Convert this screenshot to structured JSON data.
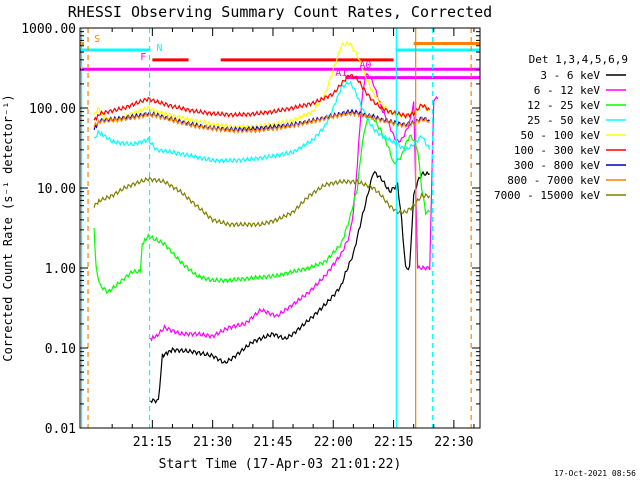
{
  "chart_data": {
    "type": "line",
    "title": "RHESSI Observing Summary Count Rates, Corrected",
    "xlabel": "Start Time (17-Apr-03 21:01:22)",
    "ylabel": "Corrected Count Rate (s⁻¹ detector⁻¹)",
    "ylog": true,
    "ylim": [
      0.01,
      1000
    ],
    "xlim_minutes": [
      -3.0,
      96.5
    ],
    "x_unit": "minutes after 21:00 UT",
    "x_ticks": [
      {
        "label": "21:15",
        "x": 15
      },
      {
        "label": "21:30",
        "x": 30
      },
      {
        "label": "21:45",
        "x": 45
      },
      {
        "label": "22:00",
        "x": 60
      },
      {
        "label": "22:15",
        "x": 75
      },
      {
        "label": "22:30",
        "x": 90
      }
    ],
    "y_ticks": [
      {
        "label": "0.01",
        "y": 0.01
      },
      {
        "label": "0.10",
        "y": 0.1
      },
      {
        "label": "1.00",
        "y": 1
      },
      {
        "label": "10.00",
        "y": 10
      },
      {
        "label": "100.00",
        "y": 100
      },
      {
        "label": "1000.00",
        "y": 1000
      }
    ],
    "legend_title": "Det 1,3,4,5,6,9",
    "legend_position": "right",
    "series": [
      {
        "name": "3 - 6 keV",
        "color": "#000000",
        "x": [
          14.5,
          16.5,
          17.5,
          20,
          25,
          30,
          33,
          35,
          40,
          45,
          48,
          50,
          55,
          58,
          60,
          62,
          63,
          65,
          67,
          69,
          70,
          72,
          74,
          76,
          77,
          78,
          79,
          80,
          81,
          82,
          83,
          84
        ],
        "y": [
          0.022,
          0.022,
          0.08,
          0.095,
          0.09,
          0.08,
          0.065,
          0.075,
          0.12,
          0.15,
          0.13,
          0.15,
          0.25,
          0.35,
          0.45,
          0.6,
          0.85,
          1.5,
          4,
          10,
          16,
          13,
          9,
          11,
          4,
          1.0,
          1.0,
          8,
          12,
          15,
          15,
          15
        ]
      },
      {
        "name": "6 - 12 keV",
        "color": "#ff00ff",
        "x": [
          14.5,
          16,
          18,
          22,
          26,
          30,
          34,
          38,
          42,
          46,
          50,
          54,
          58,
          60,
          62,
          64,
          65,
          66,
          67,
          68,
          69,
          70,
          72,
          74,
          75,
          76,
          77,
          78,
          79,
          80,
          81,
          82,
          83,
          84,
          85,
          86
        ],
        "y": [
          0.13,
          0.14,
          0.18,
          0.15,
          0.15,
          0.14,
          0.18,
          0.2,
          0.3,
          0.25,
          0.35,
          0.5,
          0.8,
          1.1,
          1.5,
          2.5,
          5,
          20,
          110,
          260,
          250,
          200,
          100,
          60,
          45,
          38,
          40,
          50,
          65,
          120,
          1.0,
          1.0,
          1.0,
          1.0,
          130,
          130
        ]
      },
      {
        "name": "12 - 25 keV",
        "color": "#00ff00",
        "x": [
          0.5,
          1,
          2,
          4,
          10,
          12,
          12.5,
          14,
          18,
          22,
          26,
          30,
          34,
          40,
          46,
          50,
          54,
          58,
          62,
          64,
          66,
          67,
          68,
          69,
          70,
          72,
          74,
          75,
          76,
          77,
          78,
          79,
          80,
          81,
          82,
          83,
          84
        ],
        "y": [
          3.0,
          1.0,
          0.6,
          0.5,
          0.9,
          0.9,
          2.0,
          2.5,
          2.0,
          1.2,
          0.8,
          0.7,
          0.7,
          0.75,
          0.8,
          0.9,
          1.0,
          1.2,
          2.0,
          4,
          10,
          30,
          60,
          80,
          75,
          50,
          30,
          20,
          22,
          25,
          35,
          45,
          40,
          30,
          10,
          5,
          5
        ]
      },
      {
        "name": "25 - 50 keV",
        "color": "#00ffff",
        "x": [
          0.5,
          1.5,
          3,
          5,
          10,
          14,
          16,
          20,
          25,
          30,
          35,
          40,
          45,
          50,
          55,
          58,
          60,
          62,
          64,
          65,
          66,
          68,
          70,
          72,
          74,
          76,
          78,
          80,
          82,
          84
        ],
        "y": [
          40,
          50,
          45,
          38,
          35,
          40,
          30,
          28,
          25,
          22,
          22,
          23,
          25,
          28,
          40,
          60,
          100,
          180,
          210,
          180,
          140,
          80,
          55,
          45,
          40,
          35,
          30,
          35,
          45,
          30
        ]
      },
      {
        "name": "50 - 100 keV",
        "color": "#ffff00",
        "x": [
          0.5,
          1.5,
          3,
          6,
          10,
          14,
          16,
          20,
          25,
          30,
          35,
          40,
          45,
          50,
          55,
          58,
          60,
          62,
          64,
          66,
          68,
          70,
          72,
          74,
          76,
          78,
          80,
          82,
          84
        ],
        "y": [
          80,
          100,
          75,
          70,
          85,
          100,
          90,
          80,
          70,
          62,
          58,
          58,
          62,
          70,
          90,
          150,
          300,
          600,
          650,
          450,
          250,
          150,
          110,
          90,
          80,
          80,
          85,
          110,
          90
        ]
      },
      {
        "name": "100 - 300 keV",
        "color": "#ff0000",
        "x": [
          0.5,
          2,
          4,
          8,
          12,
          14,
          16,
          20,
          25,
          30,
          35,
          40,
          45,
          50,
          55,
          60,
          62,
          64,
          66,
          68,
          70,
          72,
          74,
          76,
          78,
          80,
          82,
          84
        ],
        "y": [
          70,
          85,
          90,
          100,
          120,
          130,
          120,
          105,
          92,
          85,
          82,
          84,
          90,
          100,
          115,
          150,
          200,
          260,
          230,
          160,
          120,
          100,
          90,
          85,
          80,
          85,
          110,
          95
        ]
      },
      {
        "name": "300 - 800 keV",
        "color": "#0000cc",
        "x": [
          0.5,
          2,
          5,
          10,
          14,
          16,
          20,
          25,
          30,
          35,
          40,
          45,
          50,
          55,
          60,
          62,
          64,
          66,
          68,
          70,
          72,
          74,
          76,
          78,
          80,
          82,
          84
        ],
        "y": [
          55,
          70,
          72,
          78,
          85,
          82,
          72,
          62,
          56,
          54,
          55,
          58,
          62,
          70,
          80,
          85,
          90,
          88,
          82,
          78,
          72,
          68,
          64,
          62,
          65,
          75,
          70
        ]
      },
      {
        "name": "800 - 7000 keV",
        "color": "#ff8000",
        "x": [
          0.5,
          2,
          5,
          10,
          14,
          16,
          20,
          25,
          30,
          35,
          40,
          45,
          50,
          55,
          60,
          62,
          64,
          66,
          68,
          70,
          72,
          74,
          76,
          78,
          80,
          82,
          84
        ],
        "y": [
          60,
          68,
          70,
          75,
          82,
          80,
          70,
          60,
          55,
          52,
          52,
          55,
          60,
          68,
          78,
          82,
          85,
          84,
          80,
          75,
          70,
          66,
          62,
          60,
          64,
          72,
          68
        ]
      },
      {
        "name": "7000 - 15000 keV",
        "color": "#808000",
        "x": [
          0.5,
          2,
          5,
          8,
          10,
          14,
          18,
          22,
          26,
          30,
          34,
          38,
          42,
          46,
          50,
          54,
          58,
          62,
          66,
          70,
          72,
          74,
          76,
          78,
          80,
          82,
          84
        ],
        "y": [
          6,
          7,
          8,
          10,
          11,
          13,
          12,
          9,
          6,
          4,
          3.5,
          3.5,
          3.5,
          4,
          5,
          8,
          11,
          12,
          12,
          10,
          8,
          6,
          5,
          5,
          6,
          8,
          8
        ]
      }
    ],
    "annotations": [
      {
        "label": "S",
        "color": "#ff8000",
        "x": 0.5
      },
      {
        "label": "N",
        "color": "#00ffff",
        "x": 16
      },
      {
        "label": "F",
        "color": "#ff00ff",
        "x": 12
      },
      {
        "label": "A1",
        "color": "#ff00ff",
        "x": 60.5
      },
      {
        "label": "A0",
        "color": "#ff00ff",
        "x": 66.5
      }
    ],
    "flag_bars": [
      {
        "color": "#00ffff",
        "x0": -3,
        "x1": 14.5,
        "y": 530
      },
      {
        "color": "#ff8000",
        "x0": -3,
        "x1": -2,
        "y": 640
      },
      {
        "color": "#ff00ff",
        "x0": -3,
        "x1": 96.5,
        "y": 305
      },
      {
        "color": "#ff0000",
        "x0": 15,
        "x1": 24,
        "y": 400
      },
      {
        "color": "#ff0000",
        "x0": 32,
        "x1": 75,
        "y": 400
      },
      {
        "color": "#ff00ff",
        "x0": 63,
        "x1": 96.5,
        "y": 240
      },
      {
        "color": "#00ffff",
        "x0": 75.5,
        "x1": 96.5,
        "y": 530
      },
      {
        "color": "#ff8000",
        "x0": 80,
        "x1": 96.5,
        "y": 640
      }
    ],
    "vlines": [
      {
        "color": "#00ffff",
        "x": -2.6,
        "dashed": false
      },
      {
        "color": "#ff8000",
        "x": -1.0,
        "dashed": true
      },
      {
        "color": "#00ffff",
        "x": 14.3,
        "dashed": true
      },
      {
        "color": "#00ffff",
        "x": 75.7,
        "dashed": false
      },
      {
        "color": "#ff8000",
        "x": 80.5,
        "dashed": false
      },
      {
        "color": "#00ffff",
        "x": 84.7,
        "dashed": true
      },
      {
        "color": "#ff8000",
        "x": 94.3,
        "dashed": true
      }
    ]
  },
  "footer_timestamp": "17-Oct-2021 08:56"
}
